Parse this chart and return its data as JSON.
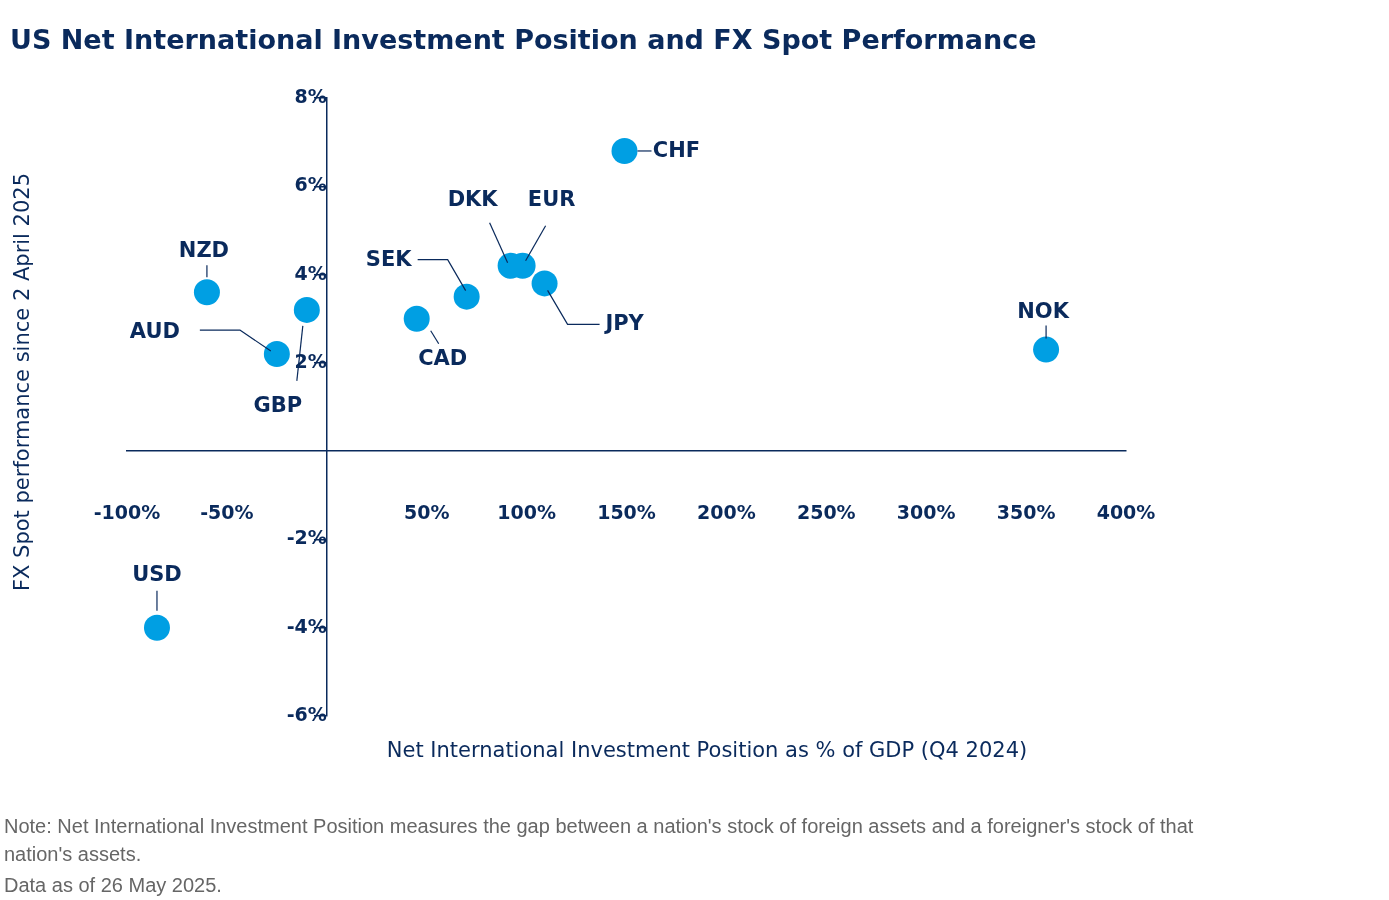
{
  "chart_data": {
    "type": "scatter",
    "title": "US Net International Investment Position and FX Spot Performance",
    "xlabel": "Net International Investment Position as % of GDP (Q4 2024)",
    "ylabel": "FX Spot performance since 2 April 2025",
    "marker": "circle",
    "xlim": [
      -100,
      400
    ],
    "xticks": [
      {
        "value": -100,
        "label": "-100%"
      },
      {
        "value": -50,
        "label": "-50%"
      },
      {
        "value": 50,
        "label": "50%"
      },
      {
        "value": 100,
        "label": "100%"
      },
      {
        "value": 150,
        "label": "150%"
      },
      {
        "value": 200,
        "label": "200%"
      },
      {
        "value": 250,
        "label": "250%"
      },
      {
        "value": 300,
        "label": "300%"
      },
      {
        "value": 350,
        "label": "350%"
      },
      {
        "value": 400,
        "label": "400%"
      }
    ],
    "ylim": [
      -6,
      8
    ],
    "yticks": [
      {
        "value": -6,
        "label": "-6%"
      },
      {
        "value": -4,
        "label": "-4%"
      },
      {
        "value": -2,
        "label": "-2%"
      },
      {
        "value": 2,
        "label": "2%"
      },
      {
        "value": 4,
        "label": "4%"
      },
      {
        "value": 6,
        "label": "6%"
      },
      {
        "value": 8,
        "label": "8%"
      }
    ],
    "series": [
      {
        "name": "USD",
        "color": "#009fe3",
        "x": [
          -85
        ],
        "values": [
          -4.0
        ]
      },
      {
        "name": "NZD",
        "color": "#009fe3",
        "x": [
          -60
        ],
        "values": [
          3.6
        ]
      },
      {
        "name": "AUD",
        "color": "#009fe3",
        "x": [
          -25
        ],
        "values": [
          2.2
        ]
      },
      {
        "name": "GBP",
        "color": "#009fe3",
        "x": [
          -10
        ],
        "values": [
          3.2
        ]
      },
      {
        "name": "CAD",
        "color": "#009fe3",
        "x": [
          45
        ],
        "values": [
          3.0
        ]
      },
      {
        "name": "SEK",
        "color": "#009fe3",
        "x": [
          70
        ],
        "values": [
          3.5
        ]
      },
      {
        "name": "DKK",
        "color": "#009fe3",
        "x": [
          92
        ],
        "values": [
          4.2
        ]
      },
      {
        "name": "EUR",
        "color": "#009fe3",
        "x": [
          98
        ],
        "values": [
          4.2
        ]
      },
      {
        "name": "JPY",
        "color": "#009fe3",
        "x": [
          109
        ],
        "values": [
          3.8
        ]
      },
      {
        "name": "CHF",
        "color": "#009fe3",
        "x": [
          149
        ],
        "values": [
          6.8
        ]
      },
      {
        "name": "NOK",
        "color": "#009fe3",
        "x": [
          360
        ],
        "values": [
          2.3
        ]
      }
    ],
    "annotations": [
      "Note: Net International Investment Position measures the gap between a nation's stock of foreign assets and a foreigner's stock of that nation's assets.",
      "Data as of 26 May 2025."
    ]
  }
}
